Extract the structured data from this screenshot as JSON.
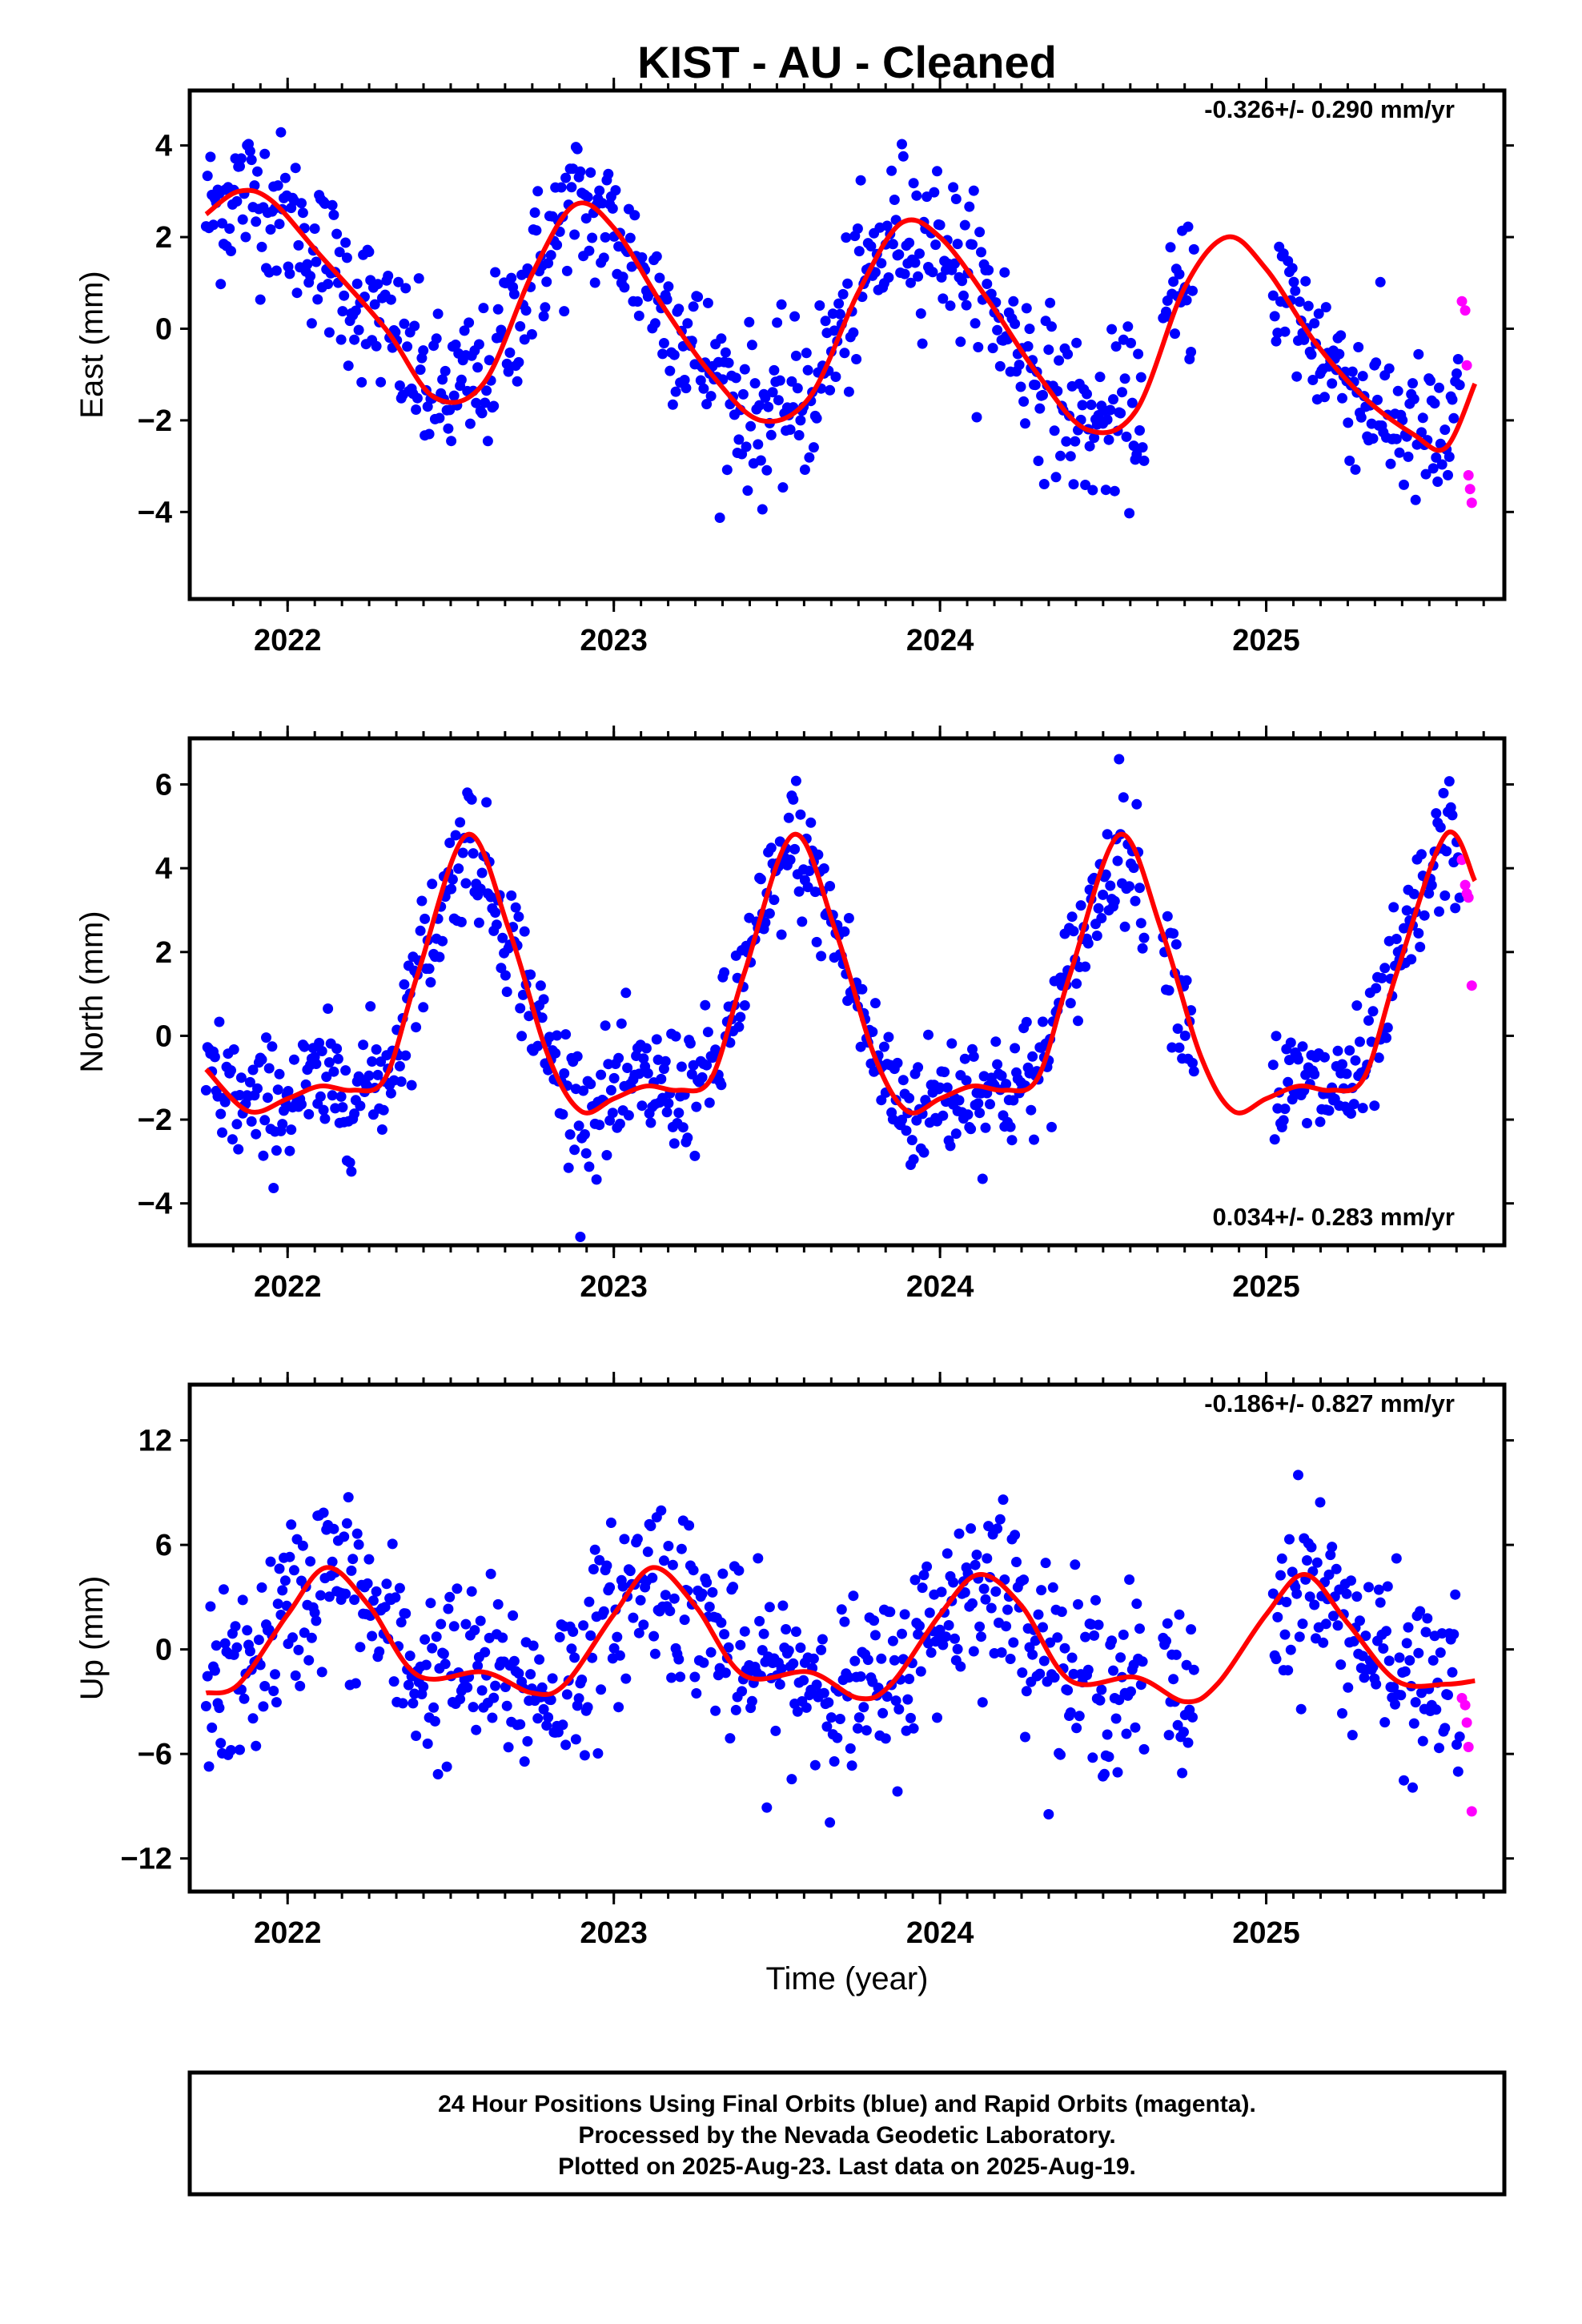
{
  "page": {
    "title": "KIST  - AU - Cleaned"
  },
  "colors": {
    "final": "#0000ff",
    "rapid": "#ff00ff",
    "fit": "#ff0000",
    "frame": "#000000"
  },
  "footer": {
    "line1": "24 Hour Positions Using Final Orbits (blue) and Rapid Orbits (magenta).",
    "line2": "Processed by the Nevada Geodetic Laboratory.",
    "line3": "Plotted on 2025-Aug-23. Last data on 2025-Aug-19."
  },
  "chart_data": [
    {
      "type": "scatter",
      "ylabel": "East (mm)",
      "xlabel": "",
      "rate": "-0.326+/- 0.290 mm/yr",
      "xlim": [
        2021.7,
        2025.73
      ],
      "ylim": [
        -5.9,
        5.2
      ],
      "xticks": [
        2022,
        2023,
        2024,
        2025
      ],
      "yticks": [
        -4,
        -2,
        0,
        2,
        4
      ],
      "series": [
        {
          "name": "Final Orbits",
          "color": "#0000ff",
          "scatter_amplitude": 1.0
        },
        {
          "name": "Rapid Orbits",
          "color": "#ff00ff",
          "x": [
            2025.6,
            2025.61,
            2025.615,
            2025.62,
            2025.625,
            2025.63
          ],
          "y": [
            0.6,
            0.4,
            -0.8,
            -3.2,
            -3.5,
            -3.8
          ]
        },
        {
          "name": "Model fit",
          "color": "#ff0000",
          "x": [
            2021.75,
            2021.85,
            2021.95,
            2022.1,
            2022.3,
            2022.45,
            2022.6,
            2022.75,
            2022.88,
            2023.0,
            2023.15,
            2023.3,
            2023.45,
            2023.6,
            2023.75,
            2023.88,
            2024.0,
            2024.15,
            2024.3,
            2024.45,
            2024.6,
            2024.75,
            2024.88,
            2025.0,
            2025.15,
            2025.3,
            2025.45,
            2025.55,
            2025.64
          ],
          "y": [
            2.5,
            3.0,
            2.8,
            1.6,
            0.0,
            -1.5,
            -1.2,
            1.2,
            2.7,
            2.2,
            0.5,
            -1.0,
            -2.0,
            -1.5,
            0.8,
            2.3,
            2.0,
            0.6,
            -1.0,
            -2.2,
            -1.8,
            0.9,
            2.0,
            1.3,
            -0.3,
            -1.5,
            -2.3,
            -2.6,
            -1.2
          ]
        }
      ]
    },
    {
      "type": "scatter",
      "ylabel": "North (mm)",
      "xlabel": "",
      "rate": "0.034+/- 0.283 mm/yr",
      "xlim": [
        2021.7,
        2025.73
      ],
      "ylim": [
        -5.0,
        7.1
      ],
      "xticks": [
        2022,
        2023,
        2024,
        2025
      ],
      "yticks": [
        -4,
        -2,
        0,
        2,
        4,
        6
      ],
      "series": [
        {
          "name": "Final Orbits",
          "color": "#0000ff",
          "scatter_amplitude": 0.9
        },
        {
          "name": "Rapid Orbits",
          "color": "#ff00ff",
          "x": [
            2025.6,
            2025.61,
            2025.615,
            2025.62,
            2025.63
          ],
          "y": [
            4.2,
            3.6,
            3.4,
            3.3,
            1.2
          ]
        },
        {
          "name": "Model fit",
          "color": "#ff0000",
          "x": [
            2021.75,
            2021.88,
            2022.0,
            2022.1,
            2022.2,
            2022.3,
            2022.4,
            2022.55,
            2022.68,
            2022.8,
            2022.9,
            2023.0,
            2023.1,
            2023.2,
            2023.3,
            2023.4,
            2023.55,
            2023.68,
            2023.8,
            2023.9,
            2024.0,
            2024.1,
            2024.2,
            2024.3,
            2024.4,
            2024.55,
            2024.68,
            2024.8,
            2024.9,
            2025.0,
            2025.1,
            2025.2,
            2025.3,
            2025.4,
            2025.55,
            2025.64
          ],
          "y": [
            -0.8,
            -1.8,
            -1.5,
            -1.2,
            -1.3,
            -1.0,
            1.5,
            4.8,
            2.5,
            -0.5,
            -1.8,
            -1.5,
            -1.2,
            -1.3,
            -1.0,
            1.5,
            4.8,
            2.5,
            -0.5,
            -1.8,
            -1.5,
            -1.2,
            -1.3,
            -1.0,
            1.5,
            4.8,
            2.5,
            -0.5,
            -1.8,
            -1.5,
            -1.2,
            -1.3,
            -1.0,
            1.5,
            4.8,
            3.7
          ]
        }
      ]
    },
    {
      "type": "scatter",
      "ylabel": "Up (mm)",
      "xlabel": "Time (year)",
      "rate": "-0.186+/- 0.827 mm/yr",
      "xlim": [
        2021.7,
        2025.73
      ],
      "ylim": [
        -13.9,
        15.2
      ],
      "xticks": [
        2022,
        2023,
        2024,
        2025
      ],
      "yticks": [
        -12,
        -6,
        0,
        6,
        12
      ],
      "series": [
        {
          "name": "Final Orbits",
          "color": "#0000ff",
          "scatter_amplitude": 3.0
        },
        {
          "name": "Rapid Orbits",
          "color": "#ff00ff",
          "x": [
            2025.6,
            2025.61,
            2025.615,
            2025.62,
            2025.63
          ],
          "y": [
            -2.8,
            -3.2,
            -4.2,
            -5.6,
            -9.3
          ]
        },
        {
          "name": "Model fit",
          "color": "#ff0000",
          "x": [
            2021.75,
            2021.85,
            2022.0,
            2022.12,
            2022.25,
            2022.4,
            2022.6,
            2022.75,
            2022.85,
            2023.0,
            2023.12,
            2023.25,
            2023.4,
            2023.6,
            2023.75,
            2023.85,
            2024.0,
            2024.12,
            2024.25,
            2024.4,
            2024.6,
            2024.75,
            2024.85,
            2025.0,
            2025.12,
            2025.25,
            2025.4,
            2025.55,
            2025.64
          ],
          "y": [
            -2.5,
            -2.0,
            2.0,
            4.7,
            2.5,
            -1.5,
            -1.3,
            -2.5,
            -2.0,
            2.0,
            4.7,
            2.5,
            -1.5,
            -1.3,
            -2.8,
            -2.0,
            2.0,
            4.3,
            2.5,
            -1.8,
            -1.6,
            -3.0,
            -2.0,
            2.0,
            4.3,
            1.5,
            -1.8,
            -2.0,
            -1.8
          ]
        }
      ]
    }
  ]
}
